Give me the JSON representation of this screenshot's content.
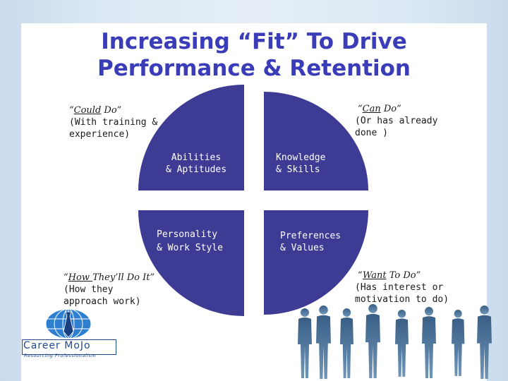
{
  "title": {
    "line1": "Increasing “Fit” To Drive",
    "line2": "Performance & Retention"
  },
  "quadrants": {
    "top_left": [
      "Abilities",
      "& Aptitudes"
    ],
    "top_right": [
      "Knowledge",
      "& Skills"
    ],
    "bottom_left": [
      "Personality",
      "& Work Style"
    ],
    "bottom_right": [
      "Preferences",
      "& Values"
    ]
  },
  "corners": {
    "could_do": {
      "emph": "Could",
      "rest": " Do”",
      "lead": "“",
      "sub": [
        "(With training &",
        "experience)"
      ]
    },
    "can_do": {
      "emph": "Can",
      "rest": " Do”",
      "lead": "“",
      "sub": [
        "(Or has already",
        "done )"
      ]
    },
    "how": {
      "emph": "How ",
      "rest": "They’ll Do It”",
      "lead": "“",
      "sub": [
        "(How they",
        "approach work)"
      ]
    },
    "want": {
      "emph": "Want",
      "rest": " To Do”",
      "lead": "“",
      "sub": [
        "(Has interest or",
        "motivation to do)"
      ]
    }
  },
  "logo": {
    "name": "Career MoJo",
    "tagline": "Resourcing Professionalism"
  },
  "colors": {
    "title": "#3a3cb8",
    "quadrant_fill": "#3d3b93",
    "logo": "#1f4a93"
  }
}
